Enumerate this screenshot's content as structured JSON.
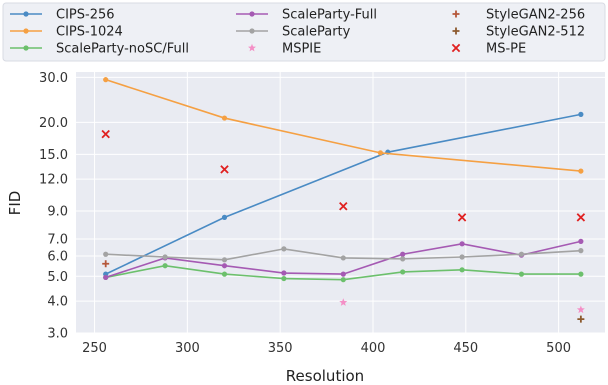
{
  "chart_data": {
    "type": "line",
    "xlabel": "Resolution",
    "ylabel": "FID",
    "xlim": [
      240,
      525
    ],
    "ylim": [
      3.0,
      31.5
    ],
    "y_scale": "log",
    "x_ticks": [
      250,
      300,
      350,
      400,
      450,
      500
    ],
    "y_ticks": [
      3.0,
      4.0,
      5.0,
      6.0,
      7.0,
      9.0,
      12.0,
      15.0,
      20.0,
      30.0
    ],
    "grid": true,
    "legend_position": "top",
    "series": [
      {
        "name": "CIPS-256",
        "color": "#4a8bc4",
        "marker": "dot",
        "line": true,
        "points": [
          [
            256,
            5.1
          ],
          [
            320,
            8.5
          ],
          [
            408,
            15.3
          ],
          [
            512,
            21.5
          ]
        ]
      },
      {
        "name": "CIPS-1024",
        "color": "#f5a043",
        "marker": "dot",
        "line": true,
        "points": [
          [
            256,
            29.4
          ],
          [
            320,
            20.8
          ],
          [
            404,
            15.2
          ],
          [
            512,
            12.9
          ]
        ]
      },
      {
        "name": "ScaleParty-noSC/Full",
        "color": "#6cc06c",
        "marker": "dot",
        "line": true,
        "points": [
          [
            256,
            4.95
          ],
          [
            288,
            5.5
          ],
          [
            320,
            5.1
          ],
          [
            352,
            4.9
          ],
          [
            384,
            4.85
          ],
          [
            416,
            5.2
          ],
          [
            448,
            5.3
          ],
          [
            480,
            5.1
          ],
          [
            512,
            5.1
          ]
        ]
      },
      {
        "name": "ScaleParty-Full",
        "color": "#a55ab3",
        "marker": "dot",
        "line": true,
        "points": [
          [
            256,
            4.95
          ],
          [
            288,
            5.9
          ],
          [
            320,
            5.5
          ],
          [
            352,
            5.15
          ],
          [
            384,
            5.1
          ],
          [
            416,
            6.1
          ],
          [
            448,
            6.7
          ],
          [
            480,
            6.05
          ],
          [
            512,
            6.85
          ]
        ]
      },
      {
        "name": "ScaleParty",
        "color": "#a3a3a3",
        "marker": "dot",
        "line": true,
        "points": [
          [
            256,
            6.1
          ],
          [
            288,
            5.95
          ],
          [
            320,
            5.8
          ],
          [
            352,
            6.4
          ],
          [
            384,
            5.9
          ],
          [
            416,
            5.85
          ],
          [
            448,
            5.95
          ],
          [
            480,
            6.1
          ],
          [
            512,
            6.3
          ]
        ]
      },
      {
        "name": "MSPIE",
        "color": "#f48fc6",
        "marker": "star",
        "line": false,
        "points": [
          [
            384,
            3.95
          ],
          [
            512,
            3.7
          ]
        ]
      },
      {
        "name": "StyleGAN2-256",
        "color": "#b5573a",
        "marker": "plus",
        "line": false,
        "points": [
          [
            256,
            5.6
          ]
        ]
      },
      {
        "name": "StyleGAN2-512",
        "color": "#8c5a2e",
        "marker": "plus",
        "line": false,
        "points": [
          [
            512,
            3.4
          ]
        ]
      },
      {
        "name": "MS-PE",
        "color": "#e02020",
        "marker": "x",
        "line": false,
        "points": [
          [
            256,
            18.0
          ],
          [
            320,
            13.1
          ],
          [
            384,
            9.4
          ],
          [
            448,
            8.5
          ],
          [
            512,
            8.5
          ]
        ]
      }
    ]
  }
}
